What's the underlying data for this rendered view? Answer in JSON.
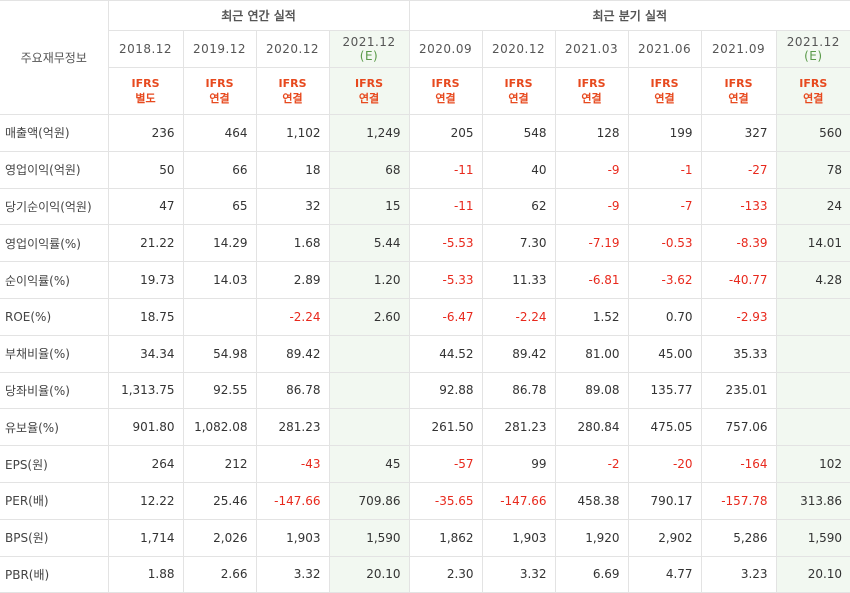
{
  "header": {
    "corner_label": "주요재무정보",
    "annual_group": "최근 연간 실적",
    "quarterly_group": "최근 분기 실적",
    "periods": [
      "2018.12",
      "2019.12",
      "2020.12",
      "2021.12",
      "2020.09",
      "2020.12",
      "2021.03",
      "2021.06",
      "2021.09",
      "2021.12"
    ],
    "estimate_mark": "(E)",
    "ifrs_top": "IFRS",
    "ifrs_types": [
      "별도",
      "연결",
      "연결",
      "연결",
      "연결",
      "연결",
      "연결",
      "연결",
      "연결",
      "연결"
    ]
  },
  "rows": [
    {
      "label": "매출액(억원)",
      "values": [
        "236",
        "464",
        "1,102",
        "1,249",
        "205",
        "548",
        "128",
        "199",
        "327",
        "560"
      ]
    },
    {
      "label": "영업이익(억원)",
      "values": [
        "50",
        "66",
        "18",
        "68",
        "-11",
        "40",
        "-9",
        "-1",
        "-27",
        "78"
      ]
    },
    {
      "label": "당기순이익(억원)",
      "values": [
        "47",
        "65",
        "32",
        "15",
        "-11",
        "62",
        "-9",
        "-7",
        "-133",
        "24"
      ]
    },
    {
      "label": "영업이익률(%)",
      "values": [
        "21.22",
        "14.29",
        "1.68",
        "5.44",
        "-5.53",
        "7.30",
        "-7.19",
        "-0.53",
        "-8.39",
        "14.01"
      ]
    },
    {
      "label": "순이익률(%)",
      "values": [
        "19.73",
        "14.03",
        "2.89",
        "1.20",
        "-5.33",
        "11.33",
        "-6.81",
        "-3.62",
        "-40.77",
        "4.28"
      ]
    },
    {
      "label": "ROE(%)",
      "values": [
        "18.75",
        "",
        "-2.24",
        "2.60",
        "-6.47",
        "-2.24",
        "1.52",
        "0.70",
        "-2.93",
        ""
      ]
    },
    {
      "label": "부채비율(%)",
      "values": [
        "34.34",
        "54.98",
        "89.42",
        "",
        "44.52",
        "89.42",
        "81.00",
        "45.00",
        "35.33",
        ""
      ]
    },
    {
      "label": "당좌비율(%)",
      "values": [
        "1,313.75",
        "92.55",
        "86.78",
        "",
        "92.88",
        "86.78",
        "89.08",
        "135.77",
        "235.01",
        ""
      ]
    },
    {
      "label": "유보율(%)",
      "values": [
        "901.80",
        "1,082.08",
        "281.23",
        "",
        "261.50",
        "281.23",
        "280.84",
        "475.05",
        "757.06",
        ""
      ]
    },
    {
      "label": "EPS(원)",
      "values": [
        "264",
        "212",
        "-43",
        "45",
        "-57",
        "99",
        "-2",
        "-20",
        "-164",
        "102"
      ]
    },
    {
      "label": "PER(배)",
      "values": [
        "12.22",
        "25.46",
        "-147.66",
        "709.86",
        "-35.65",
        "-147.66",
        "458.38",
        "790.17",
        "-157.78",
        "313.86"
      ]
    },
    {
      "label": "BPS(원)",
      "values": [
        "1,714",
        "2,026",
        "1,903",
        "1,590",
        "1,862",
        "1,903",
        "1,920",
        "2,902",
        "5,286",
        "1,590"
      ]
    },
    {
      "label": "PBR(배)",
      "values": [
        "1.88",
        "2.66",
        "3.32",
        "20.10",
        "2.30",
        "3.32",
        "6.69",
        "4.77",
        "3.23",
        "20.10"
      ]
    }
  ],
  "colors": {
    "negative": "#e8291d",
    "ifrs": "#e7491e",
    "estimate_bg": "#f2f8f1"
  }
}
